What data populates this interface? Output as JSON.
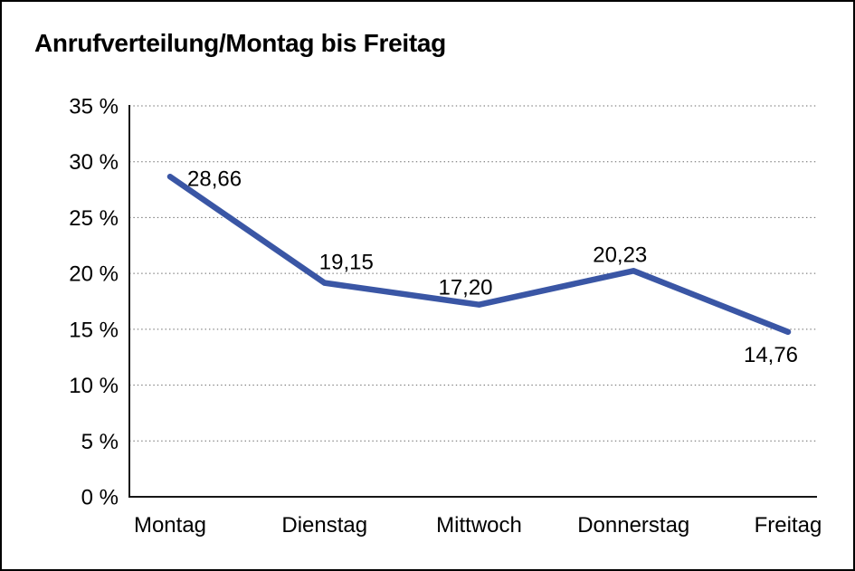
{
  "chart_data": {
    "type": "line",
    "title": "Anrufverteilung/Montag bis Freitag",
    "categories": [
      "Montag",
      "Dienstag",
      "Mittwoch",
      "Donnerstag",
      "Freitag"
    ],
    "series": [
      {
        "name": "Anrufverteilung",
        "values": [
          28.66,
          19.15,
          17.2,
          20.23,
          14.76
        ],
        "value_labels": [
          "28,66",
          "19,15",
          "17,20",
          "20,23",
          "14,76"
        ],
        "color": "#3A56A5"
      }
    ],
    "xlabel": "",
    "ylabel": "",
    "ylim": [
      0,
      35
    ],
    "ytick_step": 5,
    "ytick_labels": [
      "0 %",
      "5 %",
      "10 %",
      "15 %",
      "20 %",
      "25 %",
      "30 %",
      "35 %"
    ],
    "grid": "horizontal-dotted",
    "legend": "none",
    "decimal_separator": ","
  }
}
